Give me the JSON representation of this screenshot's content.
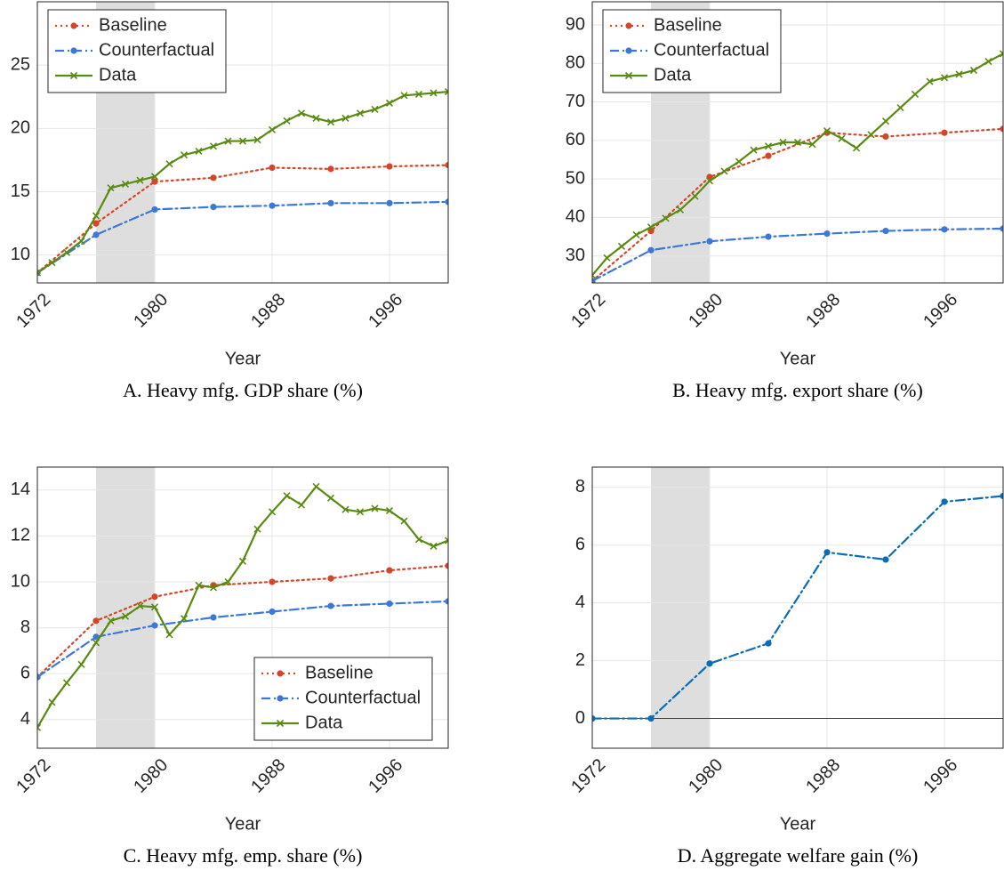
{
  "chart_data": [
    {
      "type": "line",
      "title": "A. Heavy mfg. GDP share (%)",
      "xlabel": "Year",
      "xlim": [
        1972,
        2000
      ],
      "ylim": [
        7.8,
        30
      ],
      "xticks": [
        1972,
        1980,
        1988,
        1996
      ],
      "yticks": [
        10,
        15,
        20,
        25
      ],
      "grid": true,
      "legend": "upper left",
      "shade": [
        1976,
        1980
      ],
      "series": [
        {
          "name": "Baseline",
          "color": "#d4462a",
          "style": "dotted",
          "marker": "circle",
          "x": [
            1972,
            1976,
            1980,
            1984,
            1988,
            1992,
            1996,
            2000
          ],
          "values": [
            8.6,
            12.5,
            15.8,
            16.1,
            16.9,
            16.8,
            17.0,
            17.1
          ]
        },
        {
          "name": "Counterfactual",
          "color": "#3d78d8",
          "style": "dashdot",
          "marker": "circle",
          "x": [
            1972,
            1976,
            1980,
            1984,
            1988,
            1992,
            1996,
            2000
          ],
          "values": [
            8.6,
            11.6,
            13.6,
            13.8,
            13.9,
            14.1,
            14.1,
            14.2
          ]
        },
        {
          "name": "Data",
          "color": "#5b8a12",
          "style": "solid",
          "marker": "x",
          "x": [
            1972,
            1973,
            1974,
            1975,
            1976,
            1977,
            1978,
            1979,
            1980,
            1981,
            1982,
            1983,
            1984,
            1985,
            1986,
            1987,
            1988,
            1989,
            1990,
            1991,
            1992,
            1993,
            1994,
            1995,
            1996,
            1997,
            1998,
            1999,
            2000
          ],
          "values": [
            8.6,
            9.4,
            10.2,
            11.1,
            13.1,
            15.3,
            15.6,
            15.9,
            16.2,
            17.2,
            17.9,
            18.2,
            18.6,
            19.0,
            19.0,
            19.1,
            19.9,
            20.6,
            21.2,
            20.8,
            20.5,
            20.8,
            21.2,
            21.5,
            22.0,
            22.6,
            22.7,
            22.8,
            22.9
          ]
        }
      ]
    },
    {
      "type": "line",
      "title": "B. Heavy mfg. export share (%)",
      "xlabel": "Year",
      "xlim": [
        1972,
        2000
      ],
      "ylim": [
        23,
        96
      ],
      "xticks": [
        1972,
        1980,
        1988,
        1996
      ],
      "yticks": [
        30,
        40,
        50,
        60,
        70,
        80,
        90
      ],
      "grid": true,
      "legend": "upper left",
      "shade": [
        1976,
        1980
      ],
      "series": [
        {
          "name": "Baseline",
          "color": "#d4462a",
          "style": "dotted",
          "marker": "circle",
          "x": [
            1972,
            1976,
            1980,
            1984,
            1988,
            1992,
            1996,
            2000
          ],
          "values": [
            23.5,
            36.5,
            50.5,
            56,
            62,
            61,
            62,
            63
          ]
        },
        {
          "name": "Counterfactual",
          "color": "#3d78d8",
          "style": "dashdot",
          "marker": "circle",
          "x": [
            1972,
            1976,
            1980,
            1984,
            1988,
            1992,
            1996,
            2000
          ],
          "values": [
            23.5,
            31.5,
            33.8,
            35,
            35.8,
            36.5,
            36.9,
            37.1
          ]
        },
        {
          "name": "Data",
          "color": "#5b8a12",
          "style": "solid",
          "marker": "x",
          "x": [
            1972,
            1973,
            1974,
            1975,
            1976,
            1977,
            1978,
            1979,
            1980,
            1981,
            1982,
            1983,
            1984,
            1985,
            1986,
            1987,
            1988,
            1989,
            1990,
            1991,
            1992,
            1993,
            1994,
            1995,
            1996,
            1997,
            1998,
            1999,
            2000
          ],
          "values": [
            25,
            29.5,
            32.5,
            35.5,
            37.5,
            39.8,
            42,
            45.5,
            49.5,
            52,
            54.5,
            57.5,
            58.5,
            59.5,
            59.5,
            59,
            62.5,
            60.5,
            58,
            61.5,
            65,
            68.5,
            72,
            75.3,
            76.3,
            77.2,
            78.2,
            80.5,
            82.5
          ]
        }
      ]
    },
    {
      "type": "line",
      "title": "C. Heavy mfg. emp. share (%)",
      "xlabel": "Year",
      "xlim": [
        1972,
        2000
      ],
      "ylim": [
        2.75,
        15
      ],
      "xticks": [
        1972,
        1980,
        1988,
        1996
      ],
      "yticks": [
        4,
        6,
        8,
        10,
        12,
        14
      ],
      "grid": true,
      "legend": "lower right",
      "shade": [
        1976,
        1980
      ],
      "series": [
        {
          "name": "Baseline",
          "color": "#d4462a",
          "style": "dotted",
          "marker": "circle",
          "x": [
            1972,
            1976,
            1980,
            1984,
            1988,
            1992,
            1996,
            2000
          ],
          "values": [
            5.85,
            8.3,
            9.35,
            9.85,
            10.0,
            10.15,
            10.5,
            10.7
          ]
        },
        {
          "name": "Counterfactual",
          "color": "#3d78d8",
          "style": "dashdot",
          "marker": "circle",
          "x": [
            1972,
            1976,
            1980,
            1984,
            1988,
            1992,
            1996,
            2000
          ],
          "values": [
            5.85,
            7.6,
            8.1,
            8.45,
            8.7,
            8.95,
            9.05,
            9.15
          ]
        },
        {
          "name": "Data",
          "color": "#5b8a12",
          "style": "solid",
          "marker": "x",
          "x": [
            1972,
            1973,
            1974,
            1975,
            1976,
            1977,
            1978,
            1979,
            1980,
            1981,
            1982,
            1983,
            1984,
            1985,
            1986,
            1987,
            1988,
            1989,
            1990,
            1991,
            1992,
            1993,
            1994,
            1995,
            1996,
            1997,
            1998,
            1999,
            2000
          ],
          "values": [
            3.65,
            4.75,
            5.6,
            6.4,
            7.35,
            8.3,
            8.5,
            8.95,
            8.9,
            7.7,
            8.4,
            9.85,
            9.75,
            10.0,
            10.9,
            12.3,
            13.05,
            13.75,
            13.35,
            14.15,
            13.65,
            13.15,
            13.05,
            13.2,
            13.1,
            12.65,
            11.85,
            11.55,
            11.8
          ]
        }
      ]
    },
    {
      "type": "line",
      "title": "D. Aggregate welfare gain (%)",
      "xlabel": "Year",
      "xlim": [
        1972,
        2000
      ],
      "ylim": [
        -1.03,
        8.7
      ],
      "xticks": [
        1972,
        1980,
        1988,
        1996
      ],
      "yticks": [
        0,
        2,
        4,
        6,
        8
      ],
      "grid": true,
      "zero_line": true,
      "shade": [
        1976,
        1980
      ],
      "series": [
        {
          "color": "#0b6db5",
          "style": "dashdot",
          "marker": "circle",
          "x": [
            1972,
            1976,
            1980,
            1984,
            1988,
            1992,
            1996,
            2000
          ],
          "values": [
            0,
            0,
            1.9,
            2.6,
            5.75,
            5.5,
            7.5,
            7.7
          ]
        }
      ]
    }
  ]
}
